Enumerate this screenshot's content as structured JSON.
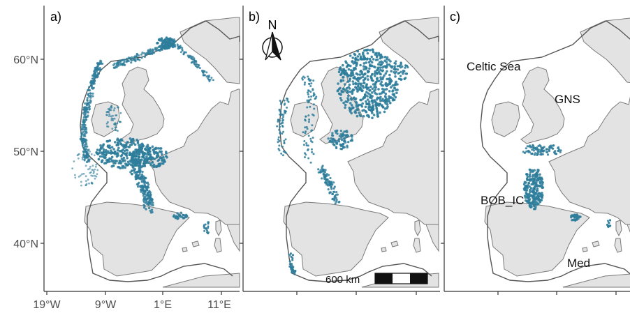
{
  "figure": {
    "colors": {
      "land": "#e3e3e3",
      "land_stroke": "#7a7a7a",
      "points": "#2e7d9b",
      "axis": "#333333",
      "boundary": "#555555"
    },
    "x_ticks": [
      "19°W",
      "9°W",
      "1°E",
      "11°E"
    ],
    "y_ticks": [
      "60°N",
      "50°N",
      "40°N"
    ],
    "panels": [
      {
        "label": "a)"
      },
      {
        "label": "b)",
        "north_arrow": "N",
        "scale_bar": "600 km"
      },
      {
        "label": "c)",
        "regions": [
          "Celtic Sea",
          "GNS",
          "BOB_IC",
          "Med"
        ]
      }
    ]
  }
}
